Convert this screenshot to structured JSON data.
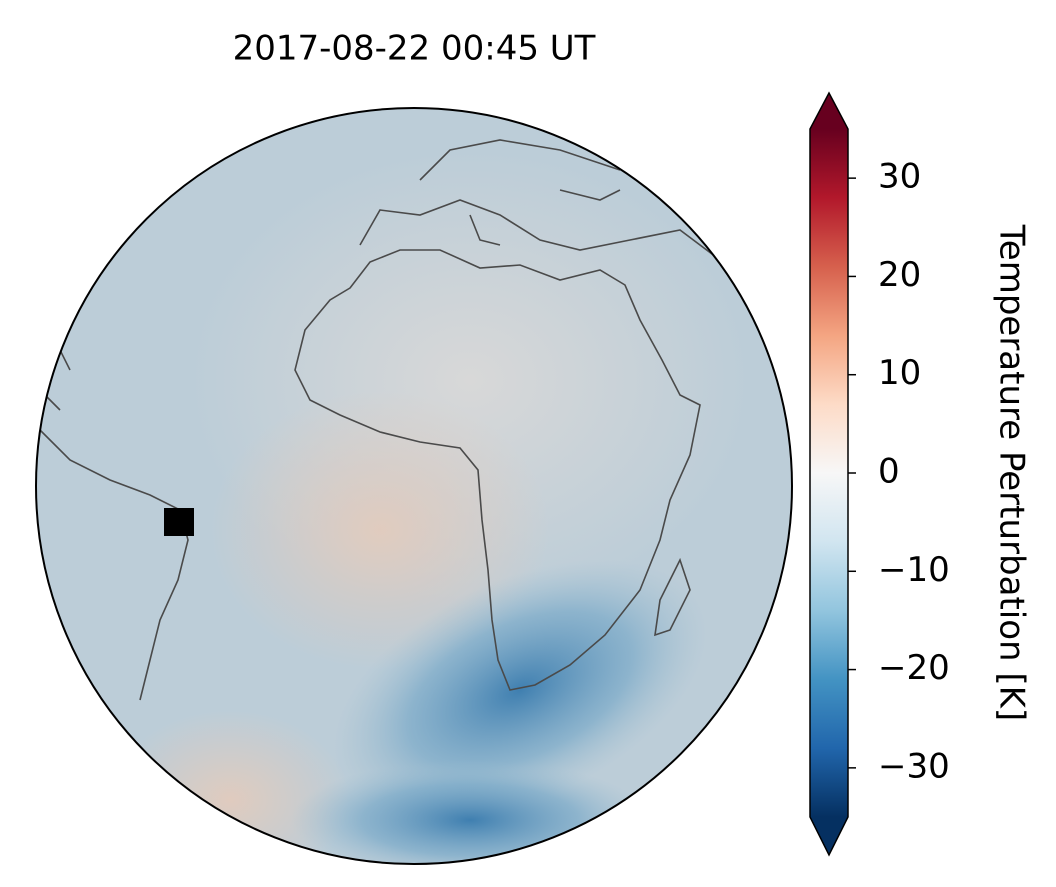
{
  "title": "2017-08-22  00:45 UT",
  "colorbar": {
    "label": "Temperature Perturbation [K]",
    "lim": [
      -35,
      35
    ],
    "ticks": [
      {
        "value": -30,
        "label": "−30"
      },
      {
        "value": -20,
        "label": "−20"
      },
      {
        "value": -10,
        "label": "−10"
      },
      0,
      10,
      20,
      30
    ],
    "colors": [
      "#053061",
      "#2166ac",
      "#4393c3",
      "#92c5de",
      "#d1e5f0",
      "#f7f7f7",
      "#fddbc7",
      "#f4a582",
      "#d6604d",
      "#b2182b",
      "#67001f"
    ],
    "extend": "both"
  }
}
